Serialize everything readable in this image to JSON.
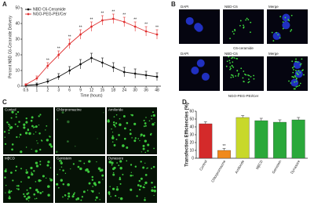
{
  "panel_labels": [
    "A",
    "B",
    "C",
    "D"
  ],
  "image_panels": {
    "B": {
      "columns": [
        "DAPI",
        "NBD-C6",
        "Merge"
      ],
      "rows": [
        "C6-ceramide",
        "NGO-PEG-PEI/Cer"
      ]
    },
    "C": {
      "labels": [
        "Control",
        "Chlorpromazine",
        "Amiloride",
        "MβCD",
        "Genistein",
        "Dynasore"
      ]
    }
  },
  "chart_data": [
    {
      "type": "line",
      "x_label": "Time (hours)",
      "y_label": "Percent NBD C6-Ceramide Delivery",
      "categories": [
        "0.5",
        "1",
        "2",
        "3",
        "6",
        "9",
        "12",
        "15",
        "18",
        "24",
        "30",
        "36",
        "48"
      ],
      "series": [
        {
          "name": "NBD C6-Ceramide",
          "color": "#111111",
          "values": [
            0.5,
            1,
            3,
            6,
            10,
            14,
            18,
            15,
            12,
            9,
            8,
            7,
            6
          ],
          "errors": [
            0.5,
            1,
            1.5,
            2,
            2.5,
            3,
            3,
            3,
            3,
            3,
            3,
            2.5,
            2.5
          ]
        },
        {
          "name": "NGO-PEG-PEI/Cer",
          "color": "#e03030",
          "values": [
            1,
            5,
            13,
            20,
            27,
            33,
            38,
            42,
            43,
            41,
            38,
            35,
            33
          ],
          "errors": [
            0.5,
            1.5,
            2,
            2.5,
            3,
            3,
            3,
            3,
            3,
            3,
            3,
            3,
            3
          ],
          "significance": [
            null,
            null,
            "**",
            "**",
            "**",
            "**",
            "**",
            "**",
            "**",
            "**",
            "**",
            "**",
            "**"
          ]
        }
      ],
      "ylim": [
        0,
        50
      ],
      "yticks": [
        0,
        10,
        20,
        30,
        40,
        50
      ],
      "legend": "upper left"
    },
    {
      "type": "bar",
      "y_label": "Transfection Efficiencies (%)",
      "categories": [
        "Control",
        "Chlorpromazine",
        "Amiloride",
        "MβCD",
        "Genistein",
        "Dynasore"
      ],
      "values": [
        44,
        10,
        52,
        48,
        46,
        49
      ],
      "errors": [
        2.5,
        2.5,
        2.5,
        3,
        3,
        3
      ],
      "colors": [
        "#d42a2a",
        "#f08a1c",
        "#c8d82a",
        "#2aa83a",
        "#2aa83a",
        "#2aa83a"
      ],
      "significance": [
        null,
        "**",
        null,
        null,
        null,
        null
      ],
      "ylim": [
        0,
        60
      ],
      "yticks": [
        0,
        10,
        20,
        30,
        40,
        50,
        60
      ]
    }
  ]
}
